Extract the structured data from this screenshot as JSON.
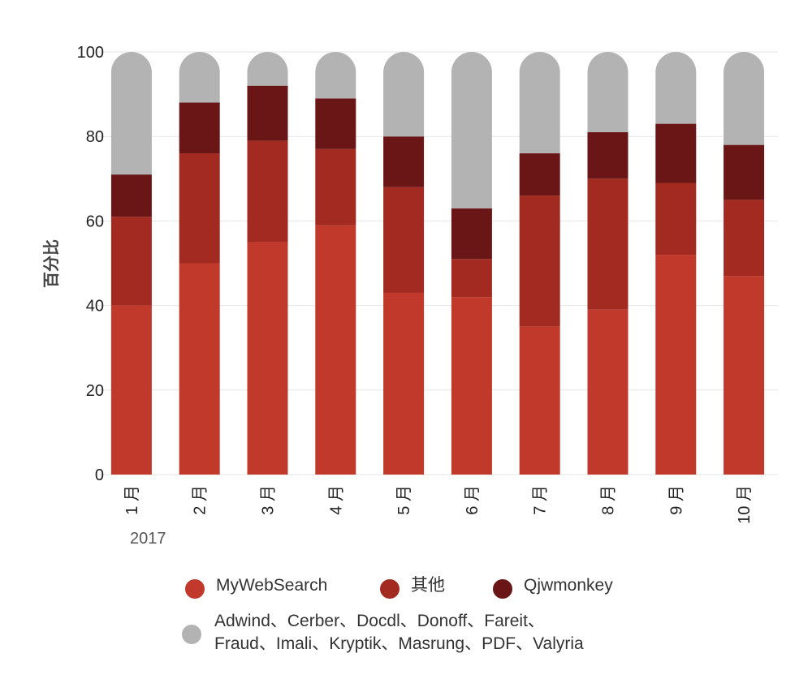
{
  "chart_data": {
    "type": "bar",
    "stacked": true,
    "orientation": "vertical",
    "ylabel": "百分比",
    "ylim": [
      0,
      100
    ],
    "yticks": [
      0,
      20,
      40,
      60,
      80,
      100
    ],
    "grid": true,
    "categories": [
      "1 月",
      "2 月",
      "3 月",
      "4 月",
      "5 月",
      "6 月",
      "7 月",
      "8 月",
      "9 月",
      "10 月"
    ],
    "year_label": "2017",
    "legend_position": "bottom",
    "series": [
      {
        "name": "MyWebSearch",
        "color": "#c0392b",
        "values": [
          40,
          50,
          55,
          59,
          43,
          42,
          35,
          39,
          52,
          47
        ]
      },
      {
        "name": "其他",
        "color": "#a32a21",
        "values": [
          21,
          26,
          24,
          18,
          25,
          9,
          31,
          31,
          17,
          18
        ]
      },
      {
        "name": "Qjwmonkey",
        "color": "#6b1616",
        "values": [
          10,
          12,
          13,
          12,
          12,
          12,
          10,
          11,
          14,
          13
        ]
      },
      {
        "name": "Adwind、Cerber、Docdl、Donoff、Fareit、\nFraud、Imali、Kryptik、Masrung、PDF、Valyria",
        "color": "#b3b3b3",
        "values": [
          29,
          12,
          8,
          11,
          20,
          37,
          24,
          19,
          17,
          22
        ]
      }
    ]
  }
}
